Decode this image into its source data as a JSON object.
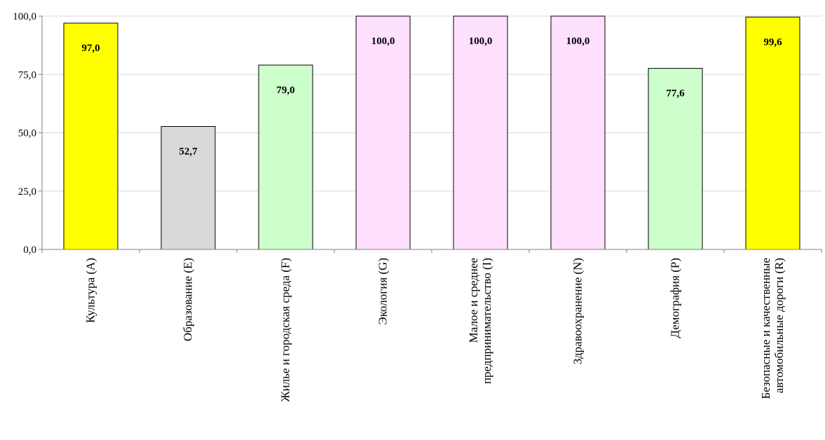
{
  "chart_data": {
    "type": "bar",
    "title": "",
    "xlabel": "",
    "ylabel": "",
    "ylim": [
      0,
      100
    ],
    "y_ticks": [
      "0,0",
      "25,0",
      "50,0",
      "75,0",
      "100,0"
    ],
    "grid": true,
    "legend": "none",
    "categories": [
      [
        "Культура (A)"
      ],
      [
        "Образование (E)"
      ],
      [
        "Жилье и городская среда (F)"
      ],
      [
        "Экология (G)"
      ],
      [
        "Малое и среднее",
        "предпринимательство (I)"
      ],
      [
        "Здравоохранение (N)"
      ],
      [
        "Демография (P)"
      ],
      [
        "Безопасные и качественные",
        "автомобильные дороги (R)"
      ]
    ],
    "values": [
      97.0,
      52.7,
      79.0,
      100.0,
      100.0,
      100.0,
      77.6,
      99.6
    ],
    "value_labels": [
      "97,0",
      "52,7",
      "79,0",
      "100,0",
      "100,0",
      "100,0",
      "77,6",
      "99,6"
    ],
    "bar_colors": [
      "#ffff00",
      "#d9d9d9",
      "#ccffcc",
      "#ffe0ff",
      "#ffe0ff",
      "#ffe0ff",
      "#ccffcc",
      "#ffff00"
    ]
  }
}
